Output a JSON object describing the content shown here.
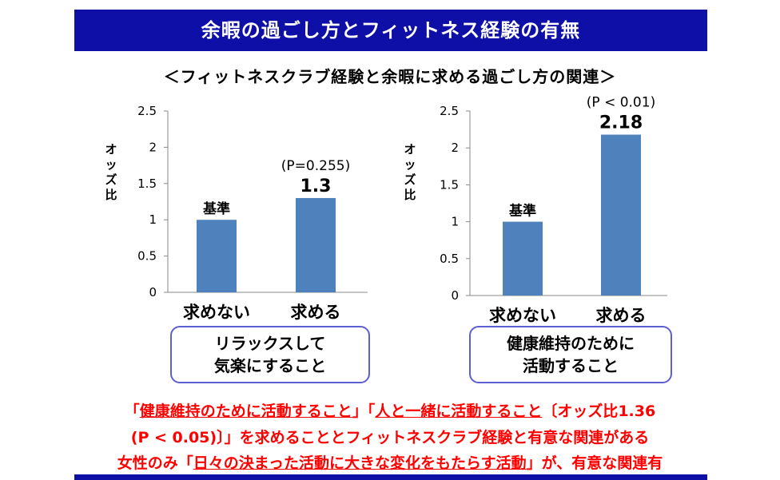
{
  "header": {
    "title": "余暇の過ごし方とフィットネス経験の有無",
    "subtitle": "＜フィットネスクラブ経験と余暇に求める過ごし方の関連＞"
  },
  "chart_data": [
    {
      "type": "bar",
      "ylabel": "オッズ比",
      "ylim": [
        0,
        2.5
      ],
      "yticks": [
        "0",
        "0.5",
        "1",
        "1.5",
        "2",
        "2.5"
      ],
      "categories": [
        "求めない",
        "求める"
      ],
      "values": [
        1.0,
        1.3
      ],
      "bar_labels": [
        "基準",
        "1.3"
      ],
      "p_label": "(P=0.255)",
      "caption_lines": [
        "リラックスして",
        "気楽にすること"
      ],
      "bar_color": "#4f81bd"
    },
    {
      "type": "bar",
      "ylabel": "オッズ比",
      "ylim": [
        0,
        2.5
      ],
      "yticks": [
        "0",
        "0.5",
        "1",
        "1.5",
        "2",
        "2.5"
      ],
      "categories": [
        "求めない",
        "求める"
      ],
      "values": [
        1.0,
        2.18
      ],
      "bar_labels": [
        "基準",
        "2.18"
      ],
      "p_label": "(P < 0.01)",
      "caption_lines": [
        "健康維持のために",
        "活動すること"
      ],
      "bar_color": "#4f81bd"
    }
  ],
  "notes": {
    "line1_q1": "「",
    "line1_u1": "健康維持のために活動すること",
    "line1_q2": "」「",
    "line1_u2": "人と一緒に活動すること",
    "line1_tail": "〔オッズ比1.36",
    "line2": "(P < 0.05)〕」を求めることとフィットネスクラブ経験と有意な関連がある",
    "line3_head": "女性のみ「",
    "line3_u": "日々の決まった活動に大きな変化をもたらす活動",
    "line3_tail": "」が、有意な関連有"
  }
}
